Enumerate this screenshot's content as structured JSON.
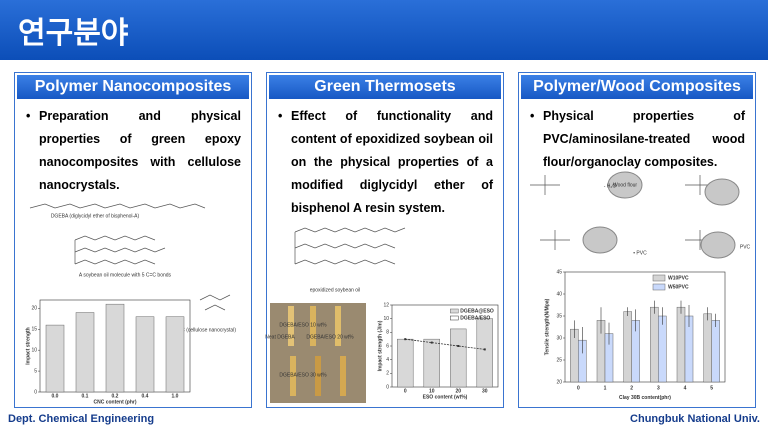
{
  "header": {
    "title": "연구분야"
  },
  "panels": [
    {
      "title": "Polymer Nanocomposites",
      "bullet": "Preparation and physical properties of green epoxy nanocomposites with cellulose nanocrystals.",
      "figure_labels": [
        "DGEBA (diglycidyl ether of bisphenol-A)",
        "A soybean oil molecule with 5 C=C bonds",
        "CNC (cellulose nanocrystal)"
      ],
      "chart": {
        "type": "bar",
        "categories": [
          "0.0",
          "0.1",
          "0.2",
          "0.4",
          "1.0"
        ],
        "x_label": "CNC content (phr)",
        "y_label": "Impact strength",
        "ylim": [
          0,
          22
        ],
        "yticks": [
          0,
          5,
          10,
          15,
          20
        ],
        "series": [
          {
            "name": "CNC",
            "color": "#d8d8d8",
            "values": [
              16,
              19,
              21,
              18,
              18
            ]
          }
        ]
      }
    },
    {
      "title": "Green Thermosets",
      "bullet": "Effect of functionality and content of epoxidized soybean oil on the physical properties of a modified diglycidyl ether of bisphenol A resin system.",
      "figure_labels": [
        "epoxidized soybean oil",
        "Neat DGEBA",
        "DGEBA/ESO 10 wt%",
        "DGEBA/ESO 20 wt%",
        "DGEBA/ESO 30 wt%"
      ],
      "chart": {
        "type": "bar",
        "categories": [
          "0",
          "10",
          "20",
          "30"
        ],
        "x_label": "ESO content (wt%)",
        "y_label": "Impact strength (J/m)",
        "ylim": [
          0,
          12
        ],
        "yticks": [
          0,
          2,
          4,
          6,
          8,
          10,
          12
        ],
        "series": [
          {
            "name": "DGEBA@ESO",
            "color": "#d8d8d8",
            "values": [
              7,
              7,
              8.5,
              10
            ]
          },
          {
            "name": "DGEBA/ESO",
            "kind": "line",
            "color": "#333333",
            "values": [
              7,
              6.5,
              6,
              5.5
            ]
          }
        ]
      }
    },
    {
      "title": "Polymer/Wood Composites",
      "bullet": "Physical properties of PVC/aminosilane-treated wood flour/organoclay composites.",
      "figure_labels": [
        "Wood flour",
        "- H₂O",
        "• PVC",
        "PVC"
      ],
      "chart": {
        "type": "bar",
        "categories": [
          "0",
          "1",
          "2",
          "3",
          "4",
          "5"
        ],
        "x_label": "Clay 30B content(phr)",
        "y_label": "Tensile strength(N/Mpa)",
        "ylim": [
          20,
          45
        ],
        "yticks": [
          20,
          25,
          30,
          35,
          40,
          45
        ],
        "series": [
          {
            "name": "W10PVC",
            "color": "#d4d4d4",
            "values": [
              32,
              34,
              36,
              37,
              37,
              35.5
            ],
            "errors": [
              2,
              3,
              1,
              1.5,
              1.5,
              1.5
            ]
          },
          {
            "name": "W50PVC",
            "color": "#c9d9fb",
            "values": [
              29.5,
              31,
              34,
              35,
              35,
              34
            ],
            "errors": [
              3,
              2.5,
              2.5,
              2,
              2.5,
              1.5
            ]
          }
        ]
      }
    }
  ],
  "footer": {
    "left": "Dept. Chemical Engineering",
    "right": "Chungbuk National Univ."
  }
}
